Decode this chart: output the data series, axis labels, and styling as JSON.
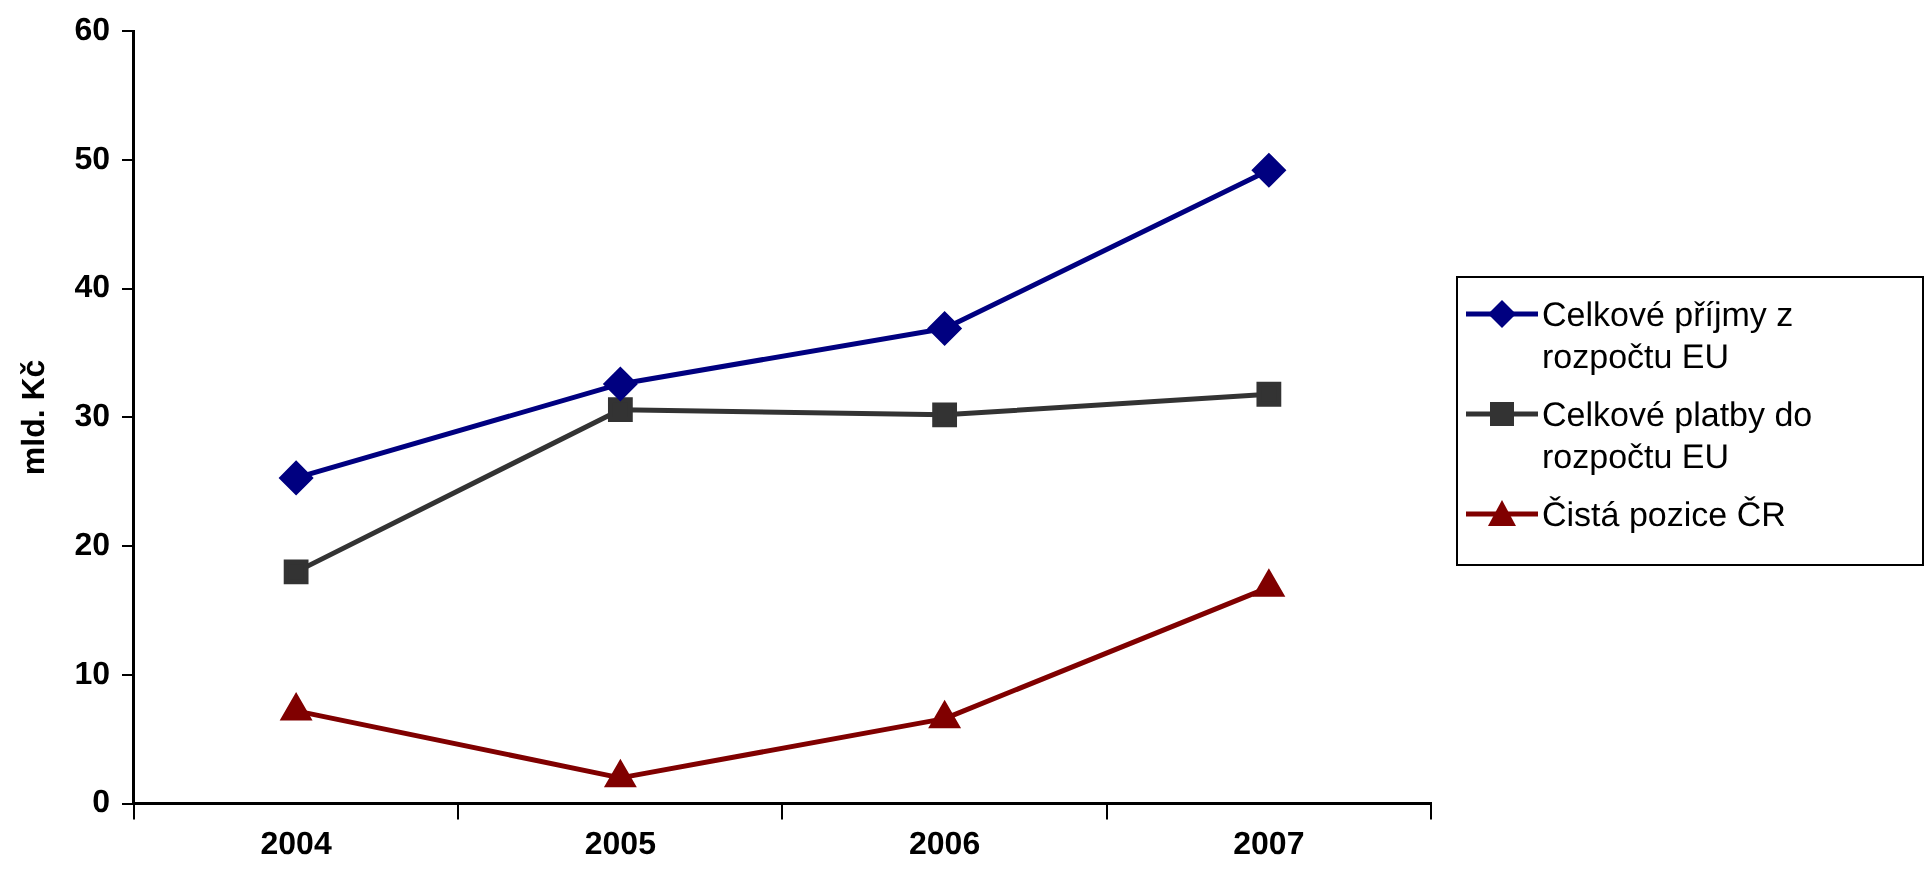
{
  "chart_data": {
    "type": "line",
    "ylabel": "mld. Kč",
    "categories": [
      "2004",
      "2005",
      "2006",
      "2007"
    ],
    "series": [
      {
        "name": "Celkové příjmy z rozpočtu EU",
        "color": "#000080",
        "marker": "diamond",
        "values": [
          25.3,
          32.6,
          36.9,
          49.2
        ]
      },
      {
        "name": "Celkové platby do rozpočtu EU",
        "color": "#333333",
        "marker": "square",
        "values": [
          18,
          30.6,
          30.2,
          31.8
        ]
      },
      {
        "name": "Čistá pozice ČR",
        "color": "#800000",
        "marker": "triangle",
        "values": [
          7.2,
          2.0,
          6.6,
          16.8
        ]
      }
    ],
    "ylim": [
      0,
      60
    ],
    "yticks": [
      0,
      10,
      20,
      30,
      40,
      50,
      60
    ],
    "grid": false,
    "legend": "right"
  }
}
